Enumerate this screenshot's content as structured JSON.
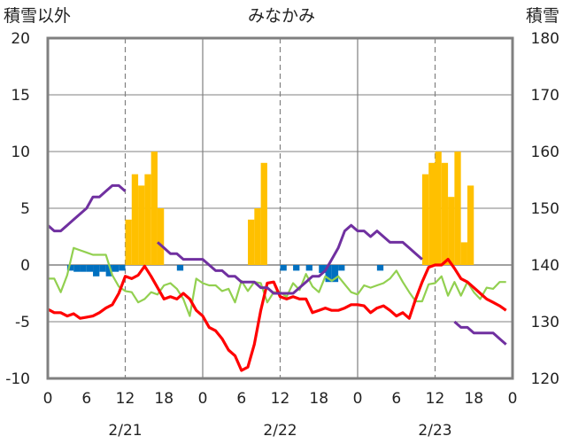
{
  "chart_data": {
    "type": "bar+line",
    "title": "みなかみ",
    "left_axis": {
      "label": "積雪以外",
      "ylim": [
        -10,
        20
      ],
      "ticks": [
        "20",
        "15",
        "10",
        "5",
        "0",
        "-5",
        "-10"
      ],
      "tick_values": [
        20,
        15,
        10,
        5,
        0,
        -5,
        -10
      ]
    },
    "right_axis": {
      "label": "積雪",
      "ylim": [
        120,
        180
      ],
      "ticks": [
        "180",
        "170",
        "160",
        "150",
        "140",
        "130",
        "120"
      ],
      "tick_values": [
        180,
        170,
        160,
        150,
        140,
        130,
        120
      ]
    },
    "x_tick_labels": [
      "0",
      "6",
      "12",
      "18",
      "0",
      "6",
      "12",
      "18",
      "0",
      "6",
      "12",
      "18",
      "0"
    ],
    "hours_total": 72,
    "day_labels": [
      {
        "label": "2/21",
        "hour": 12
      },
      {
        "label": "2/22",
        "hour": 36
      },
      {
        "label": "2/23",
        "hour": 60
      }
    ],
    "grid": {
      "solid_hours": [
        24,
        48
      ],
      "dashed_hours": [
        12,
        36,
        60
      ],
      "horizontal_every": 5
    },
    "colors": {
      "snowfall": "#ffc000",
      "sunshine": "#0070c0",
      "temperature": "#ff0000",
      "wind": "#92d050",
      "snow_depth": "#7030a0",
      "frame": "#808080",
      "grid": "#808080"
    },
    "snowfall_bars": [
      {
        "hour": 12,
        "value": 4
      },
      {
        "hour": 13,
        "value": 8
      },
      {
        "hour": 14,
        "value": 7
      },
      {
        "hour": 15,
        "value": 8
      },
      {
        "hour": 16,
        "value": 10
      },
      {
        "hour": 17,
        "value": 5
      },
      {
        "hour": 31,
        "value": 4
      },
      {
        "hour": 32,
        "value": 5
      },
      {
        "hour": 33,
        "value": 9
      },
      {
        "hour": 58,
        "value": 8
      },
      {
        "hour": 59,
        "value": 9
      },
      {
        "hour": 60,
        "value": 10
      },
      {
        "hour": 61,
        "value": 9
      },
      {
        "hour": 62,
        "value": 6
      },
      {
        "hour": 63,
        "value": 10
      },
      {
        "hour": 64,
        "value": 2
      },
      {
        "hour": 65,
        "value": 7
      }
    ],
    "sunshine_bars": [
      {
        "hour": 3,
        "value": -0.5
      },
      {
        "hour": 4,
        "value": -0.6
      },
      {
        "hour": 5,
        "value": -0.6
      },
      {
        "hour": 6,
        "value": -0.6
      },
      {
        "hour": 7,
        "value": -1.0
      },
      {
        "hour": 8,
        "value": -0.6
      },
      {
        "hour": 9,
        "value": -1.0
      },
      {
        "hour": 10,
        "value": -0.6
      },
      {
        "hour": 11,
        "value": -0.5
      },
      {
        "hour": 20,
        "value": -0.5
      },
      {
        "hour": 36,
        "value": -0.5
      },
      {
        "hour": 38,
        "value": -0.5
      },
      {
        "hour": 40,
        "value": -0.5
      },
      {
        "hour": 42,
        "value": -0.7
      },
      {
        "hour": 43,
        "value": -1.5
      },
      {
        "hour": 44,
        "value": -1.5
      },
      {
        "hour": 45,
        "value": -0.5
      },
      {
        "hour": 51,
        "value": -0.5
      }
    ],
    "temperature": [
      -3.9,
      -4.2,
      -4.2,
      -4.5,
      -4.3,
      -4.7,
      -4.6,
      -4.5,
      -4.2,
      -3.8,
      -3.5,
      -2.5,
      -1.0,
      -1.2,
      -0.9,
      -0.1,
      -1.0,
      -2.0,
      -3.0,
      -2.8,
      -3.0,
      -2.5,
      -3.0,
      -4.0,
      -4.5,
      -5.5,
      -5.8,
      -6.5,
      -7.5,
      -8.0,
      -9.3,
      -9.0,
      -7.0,
      -4.0,
      -1.6,
      -1.5,
      -2.8,
      -3.0,
      -2.8,
      -3.0,
      -3.0,
      -4.2,
      -4.0,
      -3.8,
      -4.0,
      -4.0,
      -3.8,
      -3.5,
      -3.5,
      -3.6,
      -4.2,
      -3.8,
      -3.6,
      -4.0,
      -4.5,
      -4.2,
      -4.7,
      -3.0,
      -1.5,
      -0.2,
      0.0,
      0.0,
      0.5,
      -0.3,
      -1.2,
      -1.5,
      -2.0,
      -2.5,
      -3.0,
      -3.3,
      -3.6,
      -4.0
    ],
    "wind": [
      -1.2,
      -1.2,
      -2.4,
      -0.9,
      1.5,
      1.3,
      1.1,
      0.9,
      0.9,
      0.9,
      -0.9,
      -1.9,
      -2.3,
      -2.4,
      -3.3,
      -3.0,
      -2.4,
      -2.6,
      -1.8,
      -1.6,
      -2.1,
      -3.0,
      -4.5,
      -1.2,
      -1.6,
      -1.8,
      -1.8,
      -2.3,
      -2.1,
      -3.3,
      -1.4,
      -2.3,
      -1.5,
      -1.6,
      -3.3,
      -2.4,
      -2.4,
      -2.8,
      -1.6,
      -2.2,
      -0.8,
      -1.9,
      -2.4,
      -1.0,
      -1.4,
      -1.0,
      -1.7,
      -2.4,
      -2.6,
      -1.8,
      -2.0,
      -1.8,
      -1.6,
      -1.2,
      -0.5,
      -1.5,
      -2.4,
      -3.2,
      -3.2,
      -1.7,
      -1.6,
      -1.0,
      -2.7,
      -1.5,
      -2.7,
      -1.5,
      -2.4,
      -3.0,
      -2.0,
      -2.1,
      -1.5,
      -1.5
    ],
    "snow_depth": [
      147,
      146,
      146,
      147,
      148,
      149,
      150,
      152,
      152,
      153,
      154,
      154,
      153,
      null,
      null,
      null,
      null,
      144,
      143,
      142,
      142,
      141,
      141,
      141,
      141,
      140,
      139,
      139,
      138,
      138,
      137,
      137,
      137,
      136,
      136,
      135,
      135,
      135,
      135,
      136,
      137,
      138,
      138,
      139,
      141,
      143,
      146,
      147,
      146,
      146,
      145,
      146,
      145,
      144,
      144,
      144,
      143,
      142,
      141,
      null,
      null,
      null,
      null,
      null,
      null,
      null,
      null,
      null,
      null,
      null,
      null,
      null
    ],
    "snow_depth_day3": [
      {
        "hour": 60,
        "value": 140
      },
      {
        "hour": 61,
        "value": 140
      },
      {
        "hour": 62,
        "value": 140
      }
    ],
    "snow_depth_tail": [
      {
        "hour": 63,
        "value": 130
      },
      {
        "hour": 64,
        "value": 129
      },
      {
        "hour": 65,
        "value": 129
      },
      {
        "hour": 66,
        "value": 128
      },
      {
        "hour": 67,
        "value": 128
      },
      {
        "hour": 68,
        "value": 128
      },
      {
        "hour": 69,
        "value": 128
      },
      {
        "hour": 70,
        "value": 127
      },
      {
        "hour": 71,
        "value": 126
      }
    ]
  }
}
